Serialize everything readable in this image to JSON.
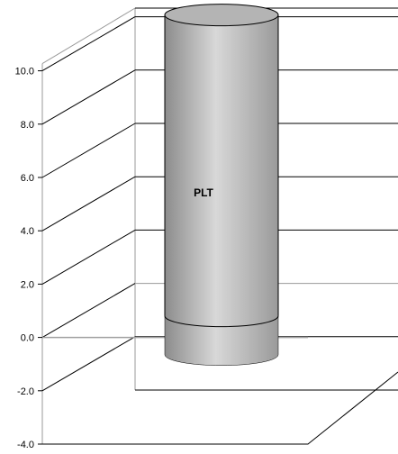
{
  "chart_data": {
    "type": "bar",
    "style": "3d-cylinder",
    "title": "",
    "xlabel": "",
    "ylabel": "",
    "categories": [
      "PLT"
    ],
    "values": [
      10.8
    ],
    "base": -2.2,
    "ylim": [
      -4.0,
      10.0
    ],
    "yticks": [
      -4.0,
      -2.0,
      0.0,
      2.0,
      4.0,
      6.0,
      8.0,
      10.0
    ],
    "ytick_labels": [
      "-4.0",
      "-2.0",
      "0.0",
      "2.0",
      "4.0",
      "6.0",
      "8.0",
      "10.0"
    ],
    "reference_lines": [
      0.0
    ],
    "data_labels": [
      "PLT"
    ],
    "grid": true,
    "legend": "none",
    "colors": {
      "bar_fill": "#a8a8a8",
      "bar_highlight": "#d8d8d8",
      "bar_outline": "#000000",
      "grid": "#000000",
      "wall_edge": "#9a9a9a",
      "zero_line": "#a0a0a0"
    }
  }
}
